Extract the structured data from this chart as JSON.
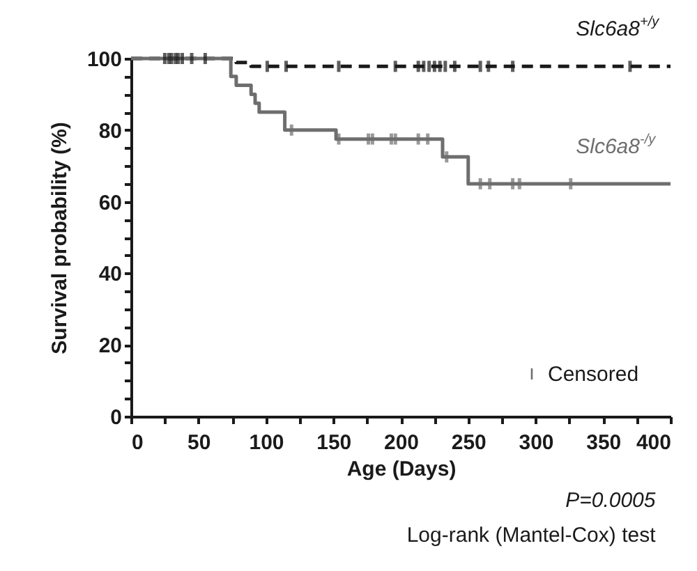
{
  "chart_data": {
    "type": "step",
    "xlabel": "Age (Days)",
    "ylabel": "Survival probability (%)",
    "xlim": [
      0,
      400
    ],
    "ylim": [
      0,
      100
    ],
    "xticks": [
      0,
      {
        "value": 25,
        "label": null
      },
      50,
      {
        "value": 75,
        "label": null
      },
      100,
      {
        "value": 125,
        "label": null
      },
      150,
      {
        "value": 175,
        "label": null
      },
      200,
      {
        "value": 225,
        "label": null
      },
      250,
      {
        "value": 275,
        "label": null
      },
      300,
      {
        "value": 325,
        "label": null
      },
      350,
      {
        "value": 375,
        "label": null
      },
      400
    ],
    "yticks": [
      0,
      {
        "value": 5,
        "label": null
      },
      {
        "value": 10,
        "label": null
      },
      {
        "value": 15,
        "label": null
      },
      20,
      {
        "value": 25,
        "label": null
      },
      {
        "value": 30,
        "label": null
      },
      {
        "value": 35,
        "label": null
      },
      40,
      {
        "value": 45,
        "label": null
      },
      {
        "value": 50,
        "label": null
      },
      {
        "value": 55,
        "label": null
      },
      60,
      {
        "value": 65,
        "label": null
      },
      {
        "value": 70,
        "label": null
      },
      {
        "value": 75,
        "label": null
      },
      80,
      {
        "value": 85,
        "label": null
      },
      {
        "value": 90,
        "label": null
      },
      {
        "value": 95,
        "label": null
      },
      100
    ],
    "series": [
      {
        "name": "Slc6a8$^{+/y}$",
        "color": "#1a1a1a",
        "line_style": "dashed",
        "x": [
          0,
          78,
          89,
          400
        ],
        "values": [
          100,
          98.9,
          97.8,
          97.8
        ]
      },
      {
        "name": "Slc6a8$^{-/y}$",
        "color": "#6e6e6e",
        "line_style": "solid",
        "x": [
          0,
          74,
          78,
          89,
          92,
          95,
          114,
          152,
          231,
          250,
          400
        ],
        "values": [
          100,
          95,
          92.5,
          90,
          87.5,
          85,
          80,
          77.5,
          72.5,
          65,
          65
        ]
      },
      {
        "name": "Censored",
        "type": "scatter",
        "color": "#6e6e6e",
        "x": [
          119,
          154,
          176,
          179,
          193,
          196,
          213,
          220,
          234,
          259,
          266,
          283,
          288,
          326
        ],
        "values": [
          80,
          77.5,
          77.5,
          77.5,
          77.5,
          77.5,
          77.5,
          77.5,
          72.5,
          65,
          65,
          65,
          65,
          65
        ]
      },
      {
        "type": "scatter",
        "color": "#1a1a1a",
        "x": [
          25,
          28,
          30,
          33,
          35,
          38,
          45,
          55,
          101,
          115,
          154,
          196,
          213,
          217,
          221,
          225,
          229,
          233,
          240,
          259,
          265,
          283,
          370
        ],
        "values": [
          100,
          100,
          100,
          100,
          100,
          100,
          100,
          100,
          97.8,
          97.8,
          97.8,
          97.8,
          97.8,
          97.8,
          97.8,
          97.8,
          97.8,
          97.8,
          97.8,
          97.8,
          97.8,
          97.8,
          97.8
        ]
      }
    ],
    "legend": "bottom right",
    "annotations": [
      "P=0.0005",
      "Log-rank (Mantel-Cox) test"
    ]
  }
}
